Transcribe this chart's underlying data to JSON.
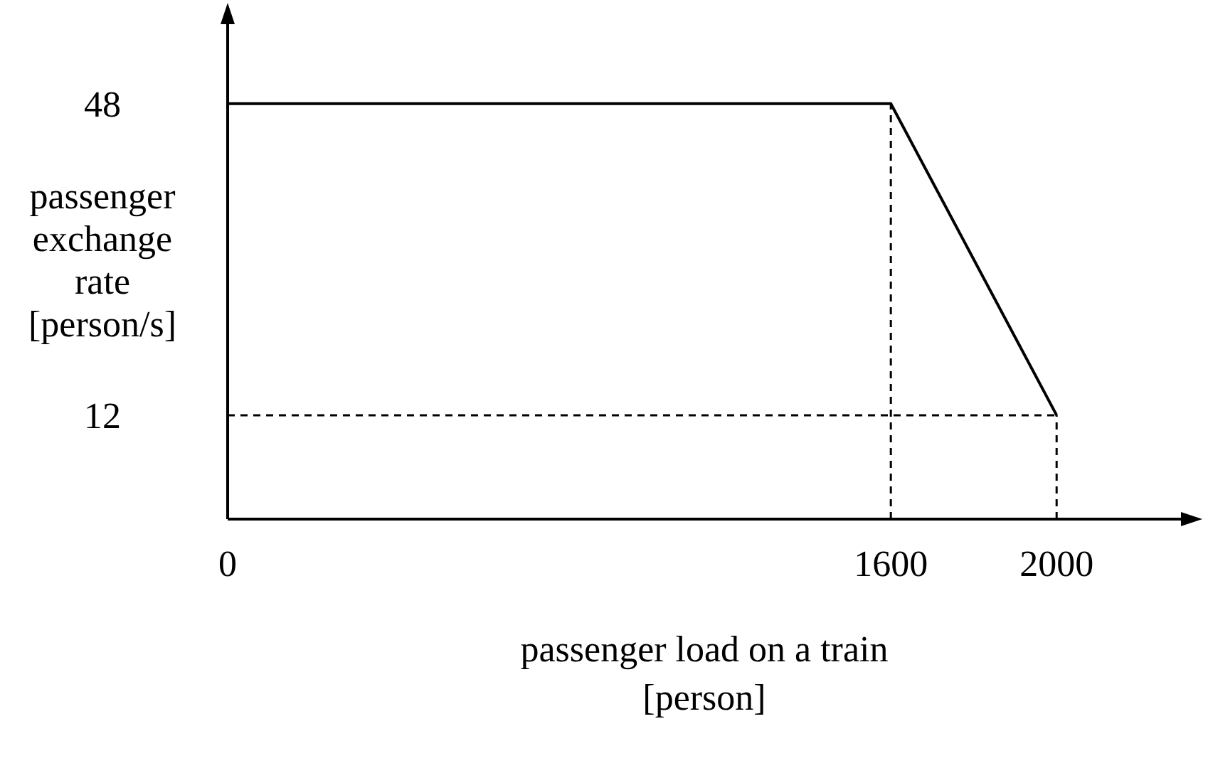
{
  "chart_data": {
    "type": "line",
    "xlabel": "passenger load on a train [person]",
    "ylabel": "passenger exchange rate [person/s]",
    "x": [
      0,
      1600,
      2000
    ],
    "series": [
      {
        "color": "#000000",
        "values": [
          48,
          48,
          12
        ]
      }
    ],
    "xlim": [
      0,
      2300
    ],
    "xticks": [
      0,
      1600,
      2000
    ],
    "ylim": [
      0,
      58
    ],
    "yticks": [
      12,
      48
    ],
    "ref_lines": [
      {
        "axis": "x",
        "value": 1600,
        "line_style": "dashed",
        "color": "#000000"
      },
      {
        "axis": "x",
        "value": 2000,
        "line_style": "dashed",
        "color": "#000000"
      },
      {
        "axis": "y",
        "value": 12,
        "line_style": "dashed",
        "color": "#000000"
      }
    ],
    "grid": false,
    "marker": "none",
    "line_style": "solid"
  }
}
